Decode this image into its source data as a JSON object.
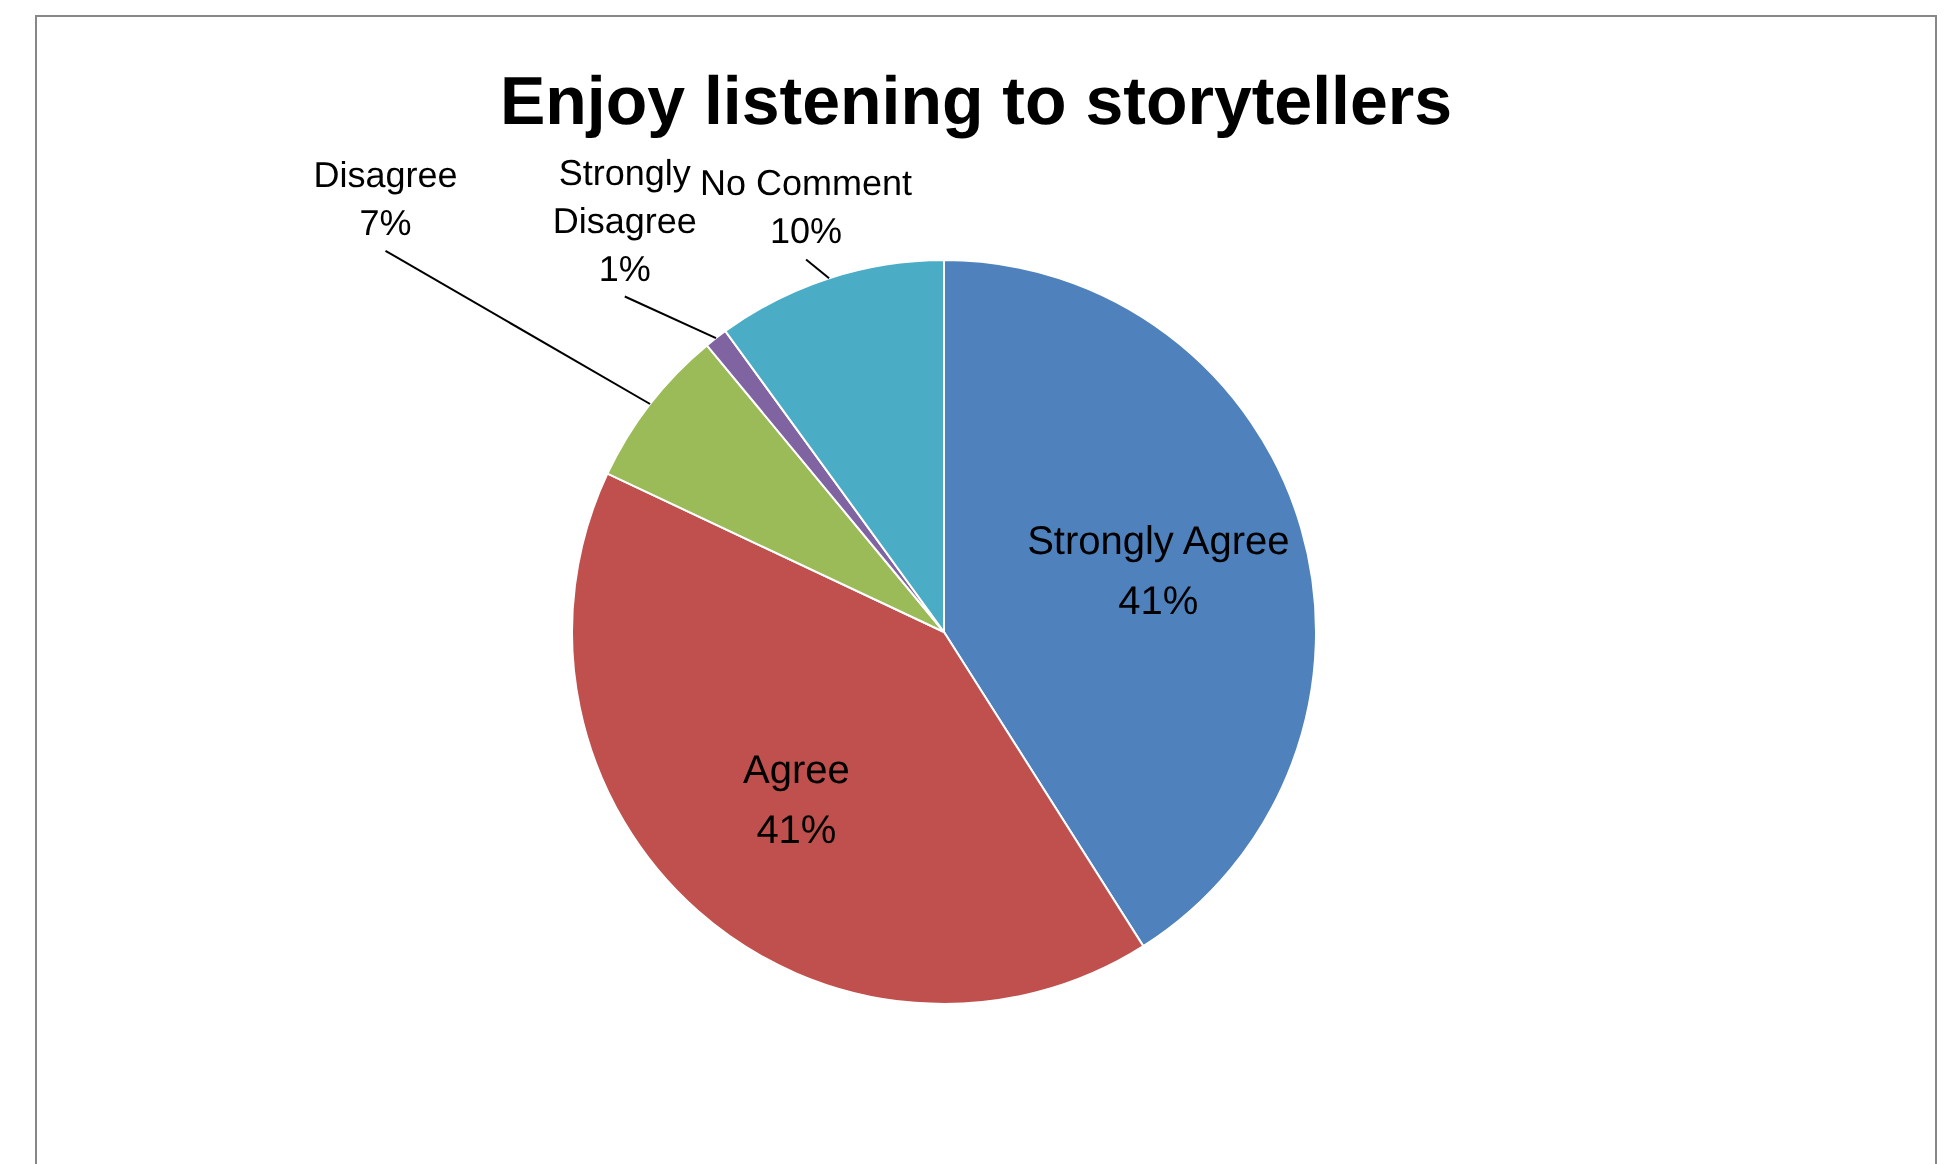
{
  "chart_data": {
    "type": "pie",
    "title": "Enjoy listening to storytellers",
    "categories": [
      "Strongly Agree",
      "Agree",
      "Disagree",
      "Strongly Disagree",
      "No Comment"
    ],
    "values": [
      41,
      41,
      7,
      1,
      10
    ],
    "colors": [
      "#4f81bd",
      "#c0504d",
      "#9bbb59",
      "#8064a2",
      "#4bacc6"
    ],
    "value_labels": [
      "41%",
      "41%",
      "7%",
      "1%",
      "10%"
    ],
    "legend": false
  }
}
